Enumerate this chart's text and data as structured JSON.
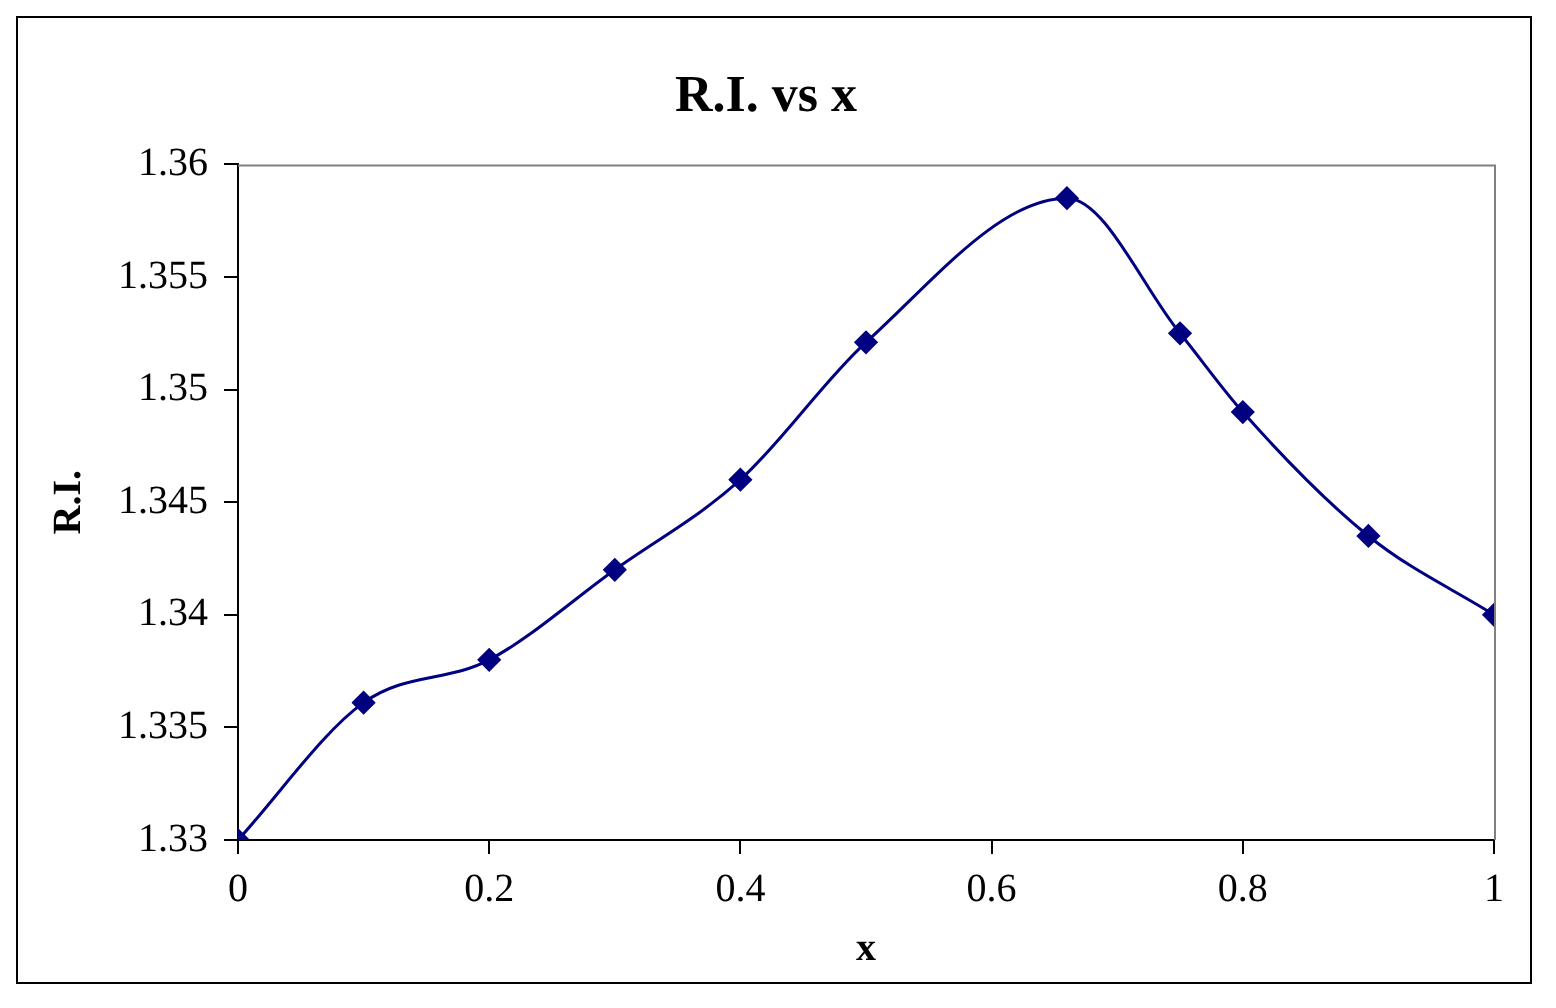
{
  "chart_data": {
    "type": "line",
    "title": "R.I. vs x",
    "xlabel": "x",
    "ylabel": "R.I.",
    "x": [
      0,
      0.1,
      0.2,
      0.3,
      0.4,
      0.5,
      0.66,
      0.75,
      0.8,
      0.9,
      1
    ],
    "series": [
      {
        "color": "#000080",
        "values": [
          1.33,
          1.3361,
          1.338,
          1.342,
          1.346,
          1.3521,
          1.3585,
          1.3525,
          1.349,
          1.3435,
          1.34
        ]
      }
    ],
    "xlim": [
      0,
      1
    ],
    "xticks": [
      0,
      0.2,
      0.4,
      0.6,
      0.8,
      1
    ],
    "ylim": [
      1.33,
      1.36
    ],
    "yticks": [
      1.33,
      1.335,
      1.34,
      1.345,
      1.35,
      1.355,
      1.36
    ],
    "grid": false,
    "legend": false,
    "marker": "diamond",
    "line_style": "solid"
  }
}
